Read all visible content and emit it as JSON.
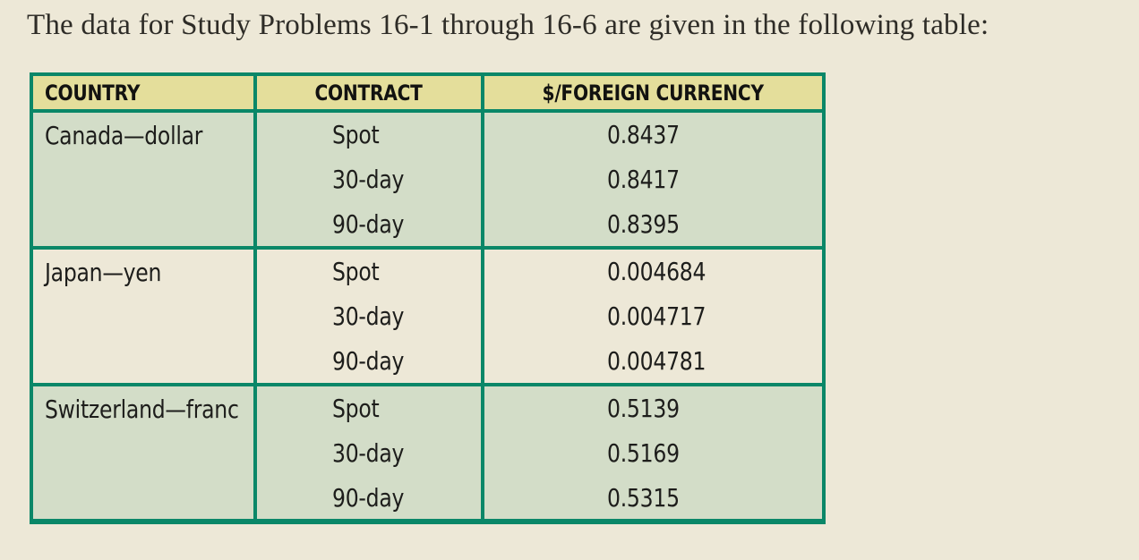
{
  "page": {
    "intro": "The data for Study Problems 16-1 through 16-6 are given in the following table:"
  },
  "table": {
    "headers": [
      "COUNTRY",
      "CONTRACT",
      "$/FOREIGN CURRENCY"
    ],
    "groups": [
      {
        "country": "Canada—dollar",
        "rows": [
          {
            "contract": "Spot",
            "rate": "0.8437"
          },
          {
            "contract": "30-day",
            "rate": "0.8417"
          },
          {
            "contract": "90-day",
            "rate": "0.8395"
          }
        ]
      },
      {
        "country": "Japan—yen",
        "rows": [
          {
            "contract": "Spot",
            "rate": "0.004684"
          },
          {
            "contract": "30-day",
            "rate": "0.004717"
          },
          {
            "contract": "90-day",
            "rate": "0.004781"
          }
        ]
      },
      {
        "country": "Switzerland—franc",
        "rows": [
          {
            "contract": "Spot",
            "rate": "0.5139"
          },
          {
            "contract": "30-day",
            "rate": "0.5169"
          },
          {
            "contract": "90-day",
            "rate": "0.5315"
          }
        ]
      }
    ]
  },
  "colors": {
    "background": "#EDE8D7",
    "header_bg": "#E4DE9B",
    "group_green_bg": "#D3DDC8",
    "group_cream_bg": "#EDE8D7",
    "border": "#0A8768",
    "text": "#1d1d1b",
    "title_color": "#2e2c27"
  }
}
